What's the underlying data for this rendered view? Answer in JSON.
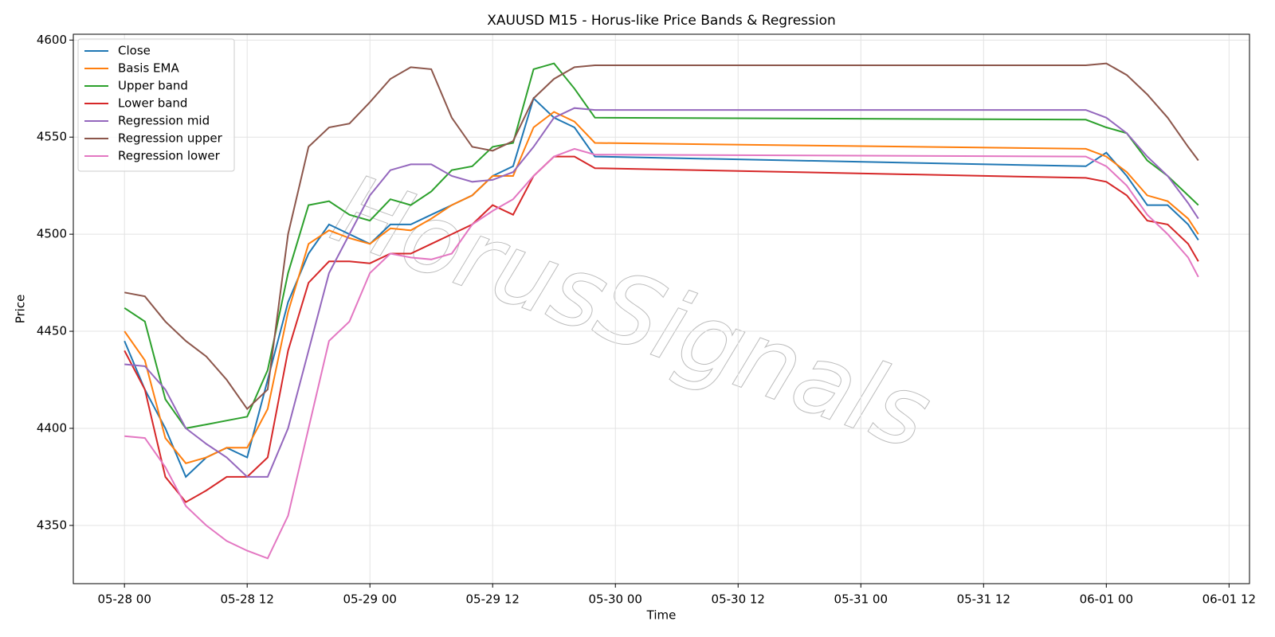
{
  "chart_data": {
    "type": "line",
    "title": "XAUUSD M15 - Horus-like Price Bands & Regression",
    "x_label": "Time",
    "y_label": "Price",
    "watermark": "HorusSignals",
    "x": [
      "05-28 00",
      "05-28 02",
      "05-28 04",
      "05-28 06",
      "05-28 08",
      "05-28 10",
      "05-28 12",
      "05-28 14",
      "05-28 16",
      "05-28 18",
      "05-28 20",
      "05-28 22",
      "05-29 00",
      "05-29 02",
      "05-29 04",
      "05-29 06",
      "05-29 08",
      "05-29 10",
      "05-29 12",
      "05-29 14",
      "05-29 16",
      "05-29 18",
      "05-29 20",
      "05-29 22",
      "05-31 22",
      "06-01 00",
      "06-01 02",
      "06-01 04",
      "06-01 06",
      "06-01 08",
      "06-01 09"
    ],
    "series": [
      {
        "name": "Close",
        "color": "#1f77b4",
        "values": [
          4445,
          4420,
          4400,
          4375,
          4385,
          4390,
          4385,
          4425,
          4465,
          4490,
          4505,
          4500,
          4495,
          4505,
          4505,
          4510,
          4515,
          4520,
          4530,
          4535,
          4570,
          4560,
          4555,
          4540,
          4535,
          4542,
          4530,
          4515,
          4515,
          4505,
          4497
        ]
      },
      {
        "name": "Basis EMA",
        "color": "#ff7f0e",
        "values": [
          4450,
          4435,
          4395,
          4382,
          4385,
          4390,
          4390,
          4410,
          4460,
          4495,
          4502,
          4498,
          4495,
          4503,
          4502,
          4508,
          4515,
          4520,
          4530,
          4530,
          4555,
          4563,
          4558,
          4547,
          4544,
          4540,
          4532,
          4520,
          4517,
          4508,
          4500
        ]
      },
      {
        "name": "Upper band",
        "color": "#2ca02c",
        "values": [
          4462,
          4455,
          4415,
          4400,
          4402,
          4404,
          4406,
          4430,
          4480,
          4515,
          4517,
          4510,
          4507,
          4518,
          4515,
          4522,
          4533,
          4535,
          4545,
          4547,
          4585,
          4588,
          4575,
          4560,
          4559,
          4555,
          4552,
          4538,
          4530,
          4520,
          4515
        ]
      },
      {
        "name": "Lower band",
        "color": "#d62728",
        "values": [
          4440,
          4420,
          4375,
          4362,
          4368,
          4375,
          4375,
          4385,
          4440,
          4475,
          4486,
          4486,
          4485,
          4490,
          4490,
          4495,
          4500,
          4505,
          4515,
          4510,
          4530,
          4540,
          4540,
          4534,
          4529,
          4527,
          4520,
          4507,
          4505,
          4495,
          4486
        ]
      },
      {
        "name": "Regression mid",
        "color": "#9467bd",
        "values": [
          4433,
          4432,
          4420,
          4400,
          4392,
          4385,
          4375,
          4375,
          4400,
          4440,
          4480,
          4500,
          4520,
          4533,
          4536,
          4536,
          4530,
          4527,
          4528,
          4532,
          4545,
          4560,
          4565,
          4564,
          4564,
          4560,
          4552,
          4540,
          4530,
          4516,
          4508
        ]
      },
      {
        "name": "Regression upper",
        "color": "#8c564b",
        "values": [
          4470,
          4468,
          4455,
          4445,
          4437,
          4425,
          4410,
          4420,
          4500,
          4545,
          4555,
          4557,
          4568,
          4580,
          4586,
          4585,
          4560,
          4545,
          4543,
          4548,
          4570,
          4580,
          4586,
          4587,
          4587,
          4588,
          4582,
          4572,
          4560,
          4545,
          4538
        ]
      },
      {
        "name": "Regression lower",
        "color": "#e377c2",
        "values": [
          4396,
          4395,
          4380,
          4360,
          4350,
          4342,
          4337,
          4333,
          4355,
          4400,
          4445,
          4455,
          4480,
          4490,
          4488,
          4487,
          4490,
          4505,
          4512,
          4518,
          4530,
          4540,
          4544,
          4541,
          4540,
          4535,
          4525,
          4510,
          4500,
          4488,
          4478
        ]
      }
    ],
    "xlim": [
      "05-27 19",
      "06-01 14"
    ],
    "xticks": [
      "05-28 00",
      "05-28 12",
      "05-29 00",
      "05-29 12",
      "05-30 00",
      "05-30 12",
      "05-31 00",
      "05-31 12",
      "06-01 00",
      "06-01 12"
    ],
    "ylim": [
      4320,
      4603
    ],
    "yticks": [
      4350,
      4400,
      4450,
      4500,
      4550,
      4600
    ],
    "grid": true,
    "legend": "upper left"
  }
}
